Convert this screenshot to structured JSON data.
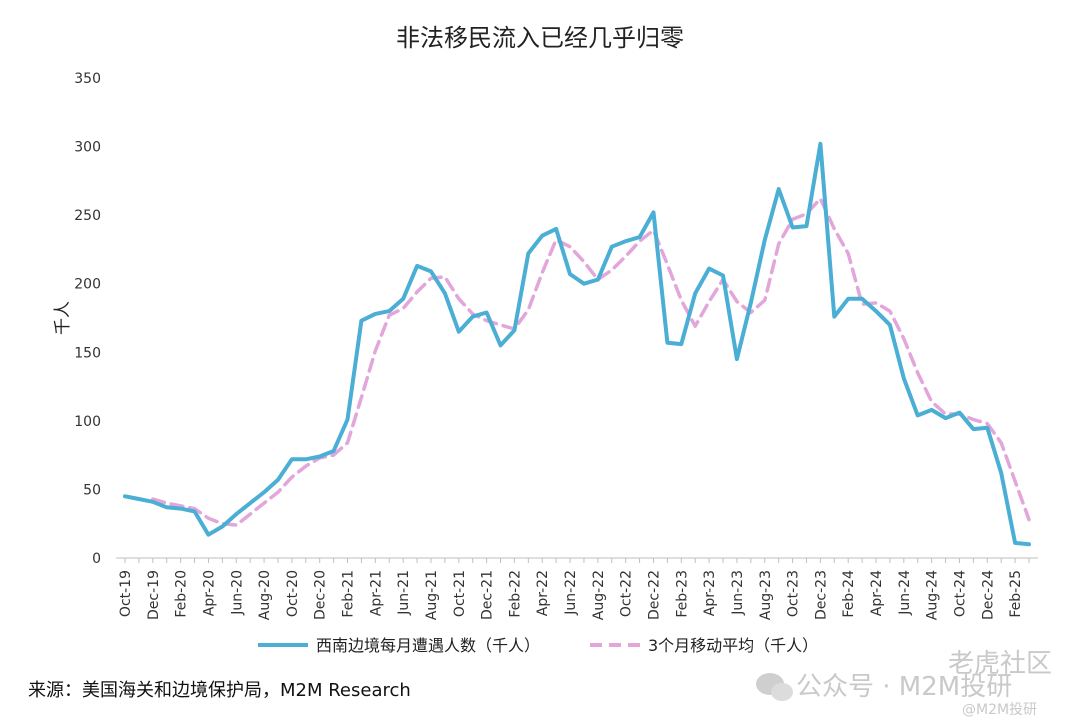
{
  "chart_data": {
    "type": "line",
    "title": "非法移民流入已经几乎归零",
    "ylabel": "千人",
    "ylim": [
      0,
      350
    ],
    "yticks": [
      0,
      50,
      100,
      150,
      200,
      250,
      300,
      350
    ],
    "x": [
      "Oct-19",
      "Nov-19",
      "Dec-19",
      "Jan-20",
      "Feb-20",
      "Mar-20",
      "Apr-20",
      "May-20",
      "Jun-20",
      "Jul-20",
      "Aug-20",
      "Sep-20",
      "Oct-20",
      "Nov-20",
      "Dec-20",
      "Jan-21",
      "Feb-21",
      "Mar-21",
      "Apr-21",
      "May-21",
      "Jun-21",
      "Jul-21",
      "Aug-21",
      "Sep-21",
      "Oct-21",
      "Nov-21",
      "Dec-21",
      "Jan-22",
      "Feb-22",
      "Mar-22",
      "Apr-22",
      "May-22",
      "Jun-22",
      "Jul-22",
      "Aug-22",
      "Sep-22",
      "Oct-22",
      "Nov-22",
      "Dec-22",
      "Jan-23",
      "Feb-23",
      "Mar-23",
      "Apr-23",
      "May-23",
      "Jun-23",
      "Jul-23",
      "Aug-23",
      "Sep-23",
      "Oct-23",
      "Nov-23",
      "Dec-23",
      "Jan-24",
      "Feb-24",
      "Mar-24",
      "Apr-24",
      "May-24",
      "Jun-24",
      "Jul-24",
      "Aug-24",
      "Sep-24",
      "Oct-24",
      "Nov-24",
      "Dec-24",
      "Jan-25",
      "Feb-25",
      "Mar-25"
    ],
    "xtick_labels": [
      "Oct-19",
      "Dec-19",
      "Feb-20",
      "Apr-20",
      "Jun-20",
      "Aug-20",
      "Oct-20",
      "Dec-20",
      "Feb-21",
      "Apr-21",
      "Jun-21",
      "Aug-21",
      "Oct-21",
      "Dec-21",
      "Feb-22",
      "Apr-22",
      "Jun-22",
      "Aug-22",
      "Oct-22",
      "Dec-22",
      "Feb-23",
      "Apr-23",
      "Jun-23",
      "Aug-23",
      "Oct-23",
      "Dec-23",
      "Feb-24",
      "Apr-24",
      "Jun-24",
      "Aug-24",
      "Oct-24",
      "Dec-24",
      "Feb-25"
    ],
    "series": [
      {
        "name": "西南边境每月遭遇人数（千人）",
        "color": "#4aaed5",
        "style": "solid",
        "values": [
          45,
          43,
          41,
          37,
          36,
          34,
          17,
          23,
          32,
          40,
          48,
          57,
          72,
          72,
          74,
          78,
          101,
          173,
          178,
          180,
          189,
          213,
          209,
          193,
          165,
          176,
          179,
          155,
          166,
          222,
          235,
          240,
          207,
          200,
          203,
          227,
          231,
          234,
          252,
          157,
          156,
          193,
          211,
          206,
          145,
          186,
          232,
          269,
          241,
          242,
          302,
          176,
          189,
          189,
          180,
          170,
          131,
          104,
          108,
          102,
          106,
          94,
          95,
          62,
          11,
          10
        ]
      },
      {
        "name": "3个月移动平均（千人）",
        "color": "#e2a6da",
        "style": "dashed",
        "values": [
          null,
          null,
          43,
          40,
          38,
          36,
          29,
          25,
          24,
          32,
          40,
          48,
          59,
          67,
          73,
          75,
          84,
          117,
          151,
          177,
          182,
          194,
          204,
          205,
          189,
          178,
          173,
          170,
          167,
          181,
          208,
          232,
          227,
          216,
          203,
          210,
          220,
          231,
          239,
          214,
          188,
          169,
          187,
          203,
          187,
          179,
          188,
          229,
          247,
          251,
          262,
          240,
          222,
          185,
          186,
          180,
          160,
          135,
          114,
          105,
          105,
          101,
          98,
          84,
          56,
          28
        ]
      }
    ],
    "legend_position": "bottom-center",
    "grid": false,
    "source": "来源：美国海关和边境保护局，M2M Research"
  },
  "watermark": {
    "wechat": "公众号 · M2M投研",
    "forum": "老虎社区",
    "handle": "@M2M投研"
  }
}
